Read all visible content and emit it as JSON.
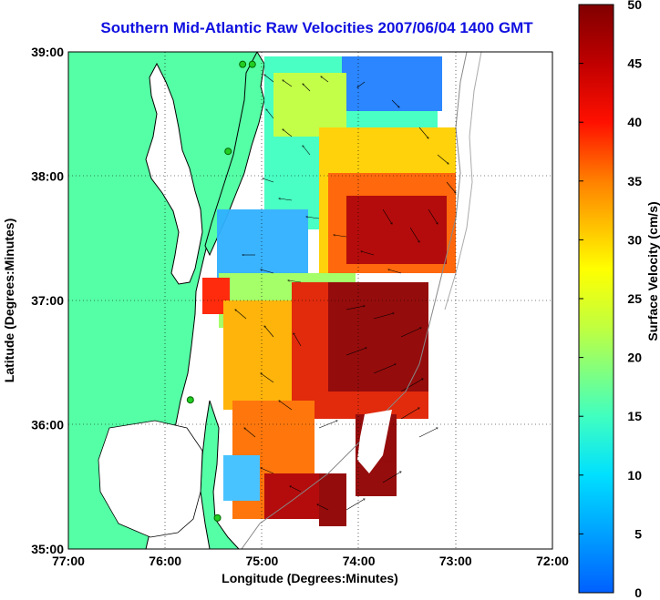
{
  "title": "Southern Mid-Atlantic Raw Velocities 2007/06/04 1400 GMT",
  "xlabel": "Longitude (Degrees:Minutes)",
  "ylabel": "Latitude (Degrees:Minutes)",
  "x_ticks": [
    "77:00",
    "76:00",
    "75:00",
    "74:00",
    "73:00",
    "72:00"
  ],
  "y_ticks": [
    "39:00",
    "38:00",
    "37:00",
    "36:00",
    "35:00"
  ],
  "colorbar": {
    "label": "Surface Velocity (cm/s)",
    "ticks": [
      "50",
      "45",
      "40",
      "35",
      "30",
      "25",
      "20",
      "15",
      "10",
      "5",
      "0"
    ],
    "min": 0,
    "max": 50
  },
  "colors": {
    "land": "#55ffa5",
    "title": "#1010e0",
    "station": "#22cc22"
  },
  "map": {
    "lon_range": [
      -77,
      -72
    ],
    "lat_range": [
      35,
      39
    ],
    "grid": true,
    "stations": [
      {
        "lon": -75.2,
        "lat": 38.9
      },
      {
        "lon": -75.1,
        "lat": 38.9
      },
      {
        "lon": -75.35,
        "lat": 38.2
      },
      {
        "lon": -75.74,
        "lat": 36.2
      },
      {
        "lon": -75.46,
        "lat": 35.25
      }
    ]
  }
}
